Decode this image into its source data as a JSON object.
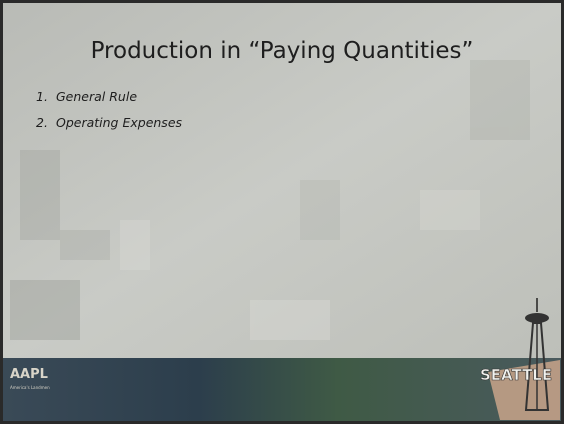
{
  "slide": {
    "title": "Production in “Paying Quantities”",
    "items": [
      {
        "number": "1.",
        "text": "General Rule"
      },
      {
        "number": "2.",
        "text": "Operating Expenses"
      }
    ],
    "footer": {
      "left_logo": "AAPL",
      "left_tagline": "America's Landmen",
      "right_logo": "SEATTLE"
    }
  }
}
